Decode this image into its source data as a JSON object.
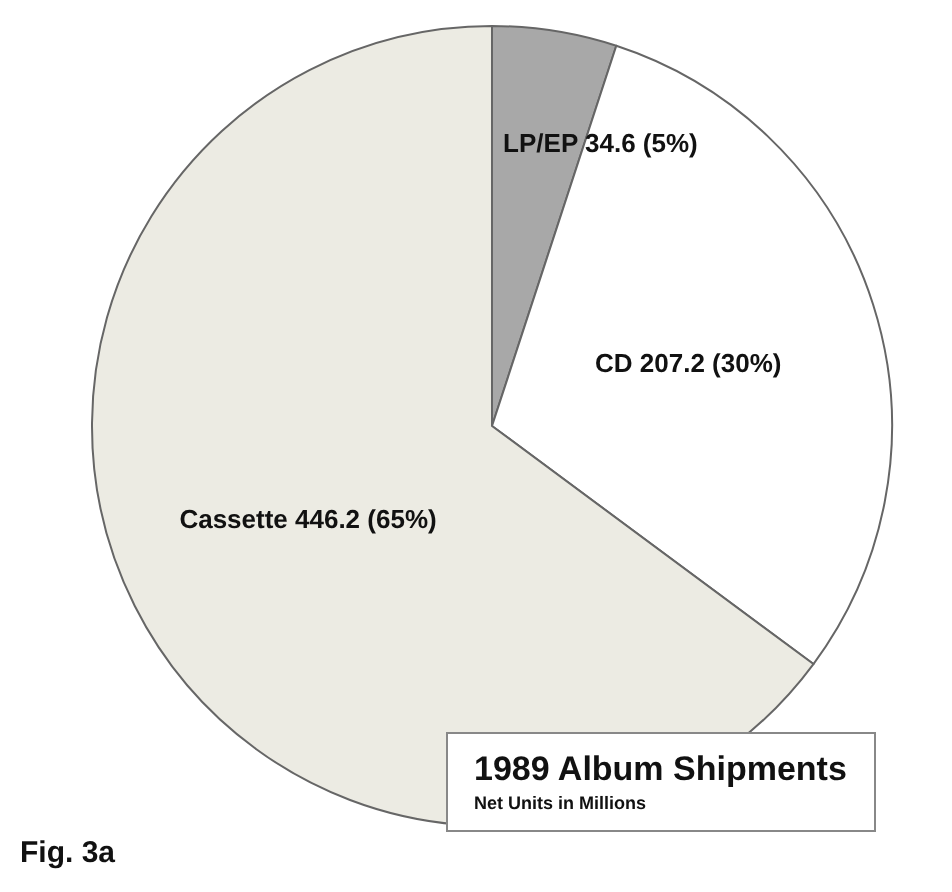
{
  "chart_data": {
    "type": "pie",
    "title": "1989 Album Shipments",
    "subtitle": "Net Units in Millions",
    "categories": [
      "LP/EP",
      "CD",
      "Cassette"
    ],
    "values": [
      34.6,
      207.2,
      446.2
    ],
    "colors": [
      "#a8a8a8",
      "#ffffff",
      "#ecebe3"
    ],
    "value_labels": [
      "34.6 (5%)",
      "207.2 (30%)",
      "446.2 (65%)"
    ],
    "legend": false,
    "annotations": [
      "Fig. 3a"
    ]
  }
}
